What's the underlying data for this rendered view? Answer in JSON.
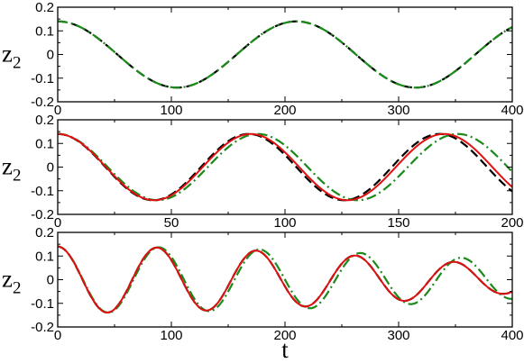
{
  "chart_data": [
    {
      "type": "line",
      "ylabel": "z",
      "ylabel_sub": "2",
      "xlabel": "",
      "xlim": [
        0,
        400
      ],
      "ylim": [
        -0.2,
        0.2
      ],
      "xticks": [
        0,
        100,
        200,
        300,
        400
      ],
      "yticks": [
        -0.2,
        -0.1,
        0,
        0.1,
        0.2
      ],
      "ytick_labels": [
        "-0.2",
        "-0.1",
        "0",
        "0.1",
        "0.2"
      ],
      "grid": false,
      "model": {
        "series": [
          {
            "color": "#000000",
            "dash": "dashed",
            "components": [
              {
                "a": 0.14,
                "T": 210,
                "d": 1
              }
            ]
          },
          {
            "color": "#1a8a1a",
            "dash": "dashdot",
            "components": [
              {
                "a": 0.14,
                "T": 210,
                "d": 1
              }
            ]
          }
        ]
      }
    },
    {
      "type": "line",
      "ylabel": "z",
      "ylabel_sub": "2",
      "xlabel": "",
      "xlim": [
        0,
        200
      ],
      "ylim": [
        -0.2,
        0.2
      ],
      "xticks": [
        0,
        50,
        100,
        150,
        200
      ],
      "yticks": [
        -0.2,
        -0.1,
        0,
        0.1,
        0.2
      ],
      "ytick_labels": [
        "-0.2",
        "-0.1",
        "0",
        "0.1",
        "0.2"
      ],
      "grid": false,
      "model": {
        "series": [
          {
            "color": "#000000",
            "dash": "dashed",
            "components": [
              {
                "a": 0.14,
                "T": 84,
                "d": 1
              }
            ]
          },
          {
            "color": "#1a8a1a",
            "dash": "dashdot",
            "components": [
              {
                "a": 0.14,
                "T": 88,
                "d": 1
              }
            ]
          },
          {
            "color": "#e01010",
            "dash": "solid",
            "components": [
              {
                "a": 0.14,
                "T": 85,
                "d": 1
              }
            ]
          }
        ]
      }
    },
    {
      "type": "line",
      "ylabel": "z",
      "ylabel_sub": "2",
      "xlabel": "t",
      "xlim": [
        0,
        400
      ],
      "ylim": [
        -0.2,
        0.2
      ],
      "xticks": [
        0,
        100,
        200,
        300,
        400
      ],
      "yticks": [
        -0.2,
        -0.1,
        0,
        0.1,
        0.2
      ],
      "ytick_labels": [
        "-0.2",
        "-0.1",
        "0",
        "0.1",
        "0.2"
      ],
      "grid": false,
      "model": {
        "series": [
          {
            "color": "#000000",
            "dash": "dashed",
            "components": [
              {
                "a": 0.07,
                "T": 91,
                "d": 1
              },
              {
                "a": 0.07,
                "T": 84,
                "d": 1
              }
            ]
          },
          {
            "color": "#1a8a1a",
            "dash": "dashdot",
            "components": [
              {
                "a": 0.07,
                "T": 92,
                "d": 1
              },
              {
                "a": 0.07,
                "T": 86,
                "d": 1
              }
            ]
          },
          {
            "color": "#e01010",
            "dash": "solid",
            "components": [
              {
                "a": 0.07,
                "T": 91,
                "d": 1
              },
              {
                "a": 0.07,
                "T": 84,
                "d": 1
              }
            ]
          }
        ]
      }
    }
  ]
}
